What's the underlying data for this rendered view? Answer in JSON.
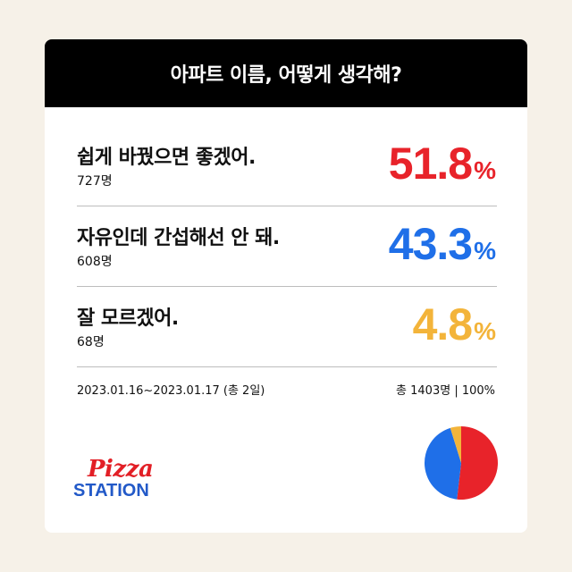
{
  "header": {
    "title": "아파트 이름, 어떻게 생각해?"
  },
  "results": [
    {
      "label": "쉽게 바꿨으면 좋겠어.",
      "count": "727명",
      "percent": "51.8",
      "unit": "%",
      "color": "#e8232a"
    },
    {
      "label": "자유인데 간섭해선 안 돼.",
      "count": "608명",
      "percent": "43.3",
      "unit": "%",
      "color": "#1f6fe8"
    },
    {
      "label": "잘 모르겠어.",
      "count": "68명",
      "percent": "4.8",
      "unit": "%",
      "color": "#f3b43a"
    }
  ],
  "footer": {
    "period": "2023.01.16~2023.01.17 (총 2일)",
    "total": "총 1403명 | 100%"
  },
  "logo": {
    "top": "Pizza",
    "bottom": "STATION"
  },
  "chart_data": {
    "type": "pie",
    "categories": [
      "쉽게 바꿨으면 좋겠어.",
      "자유인데 간섭해선 안 돼.",
      "잘 모르겠어."
    ],
    "values": [
      51.8,
      43.3,
      4.8
    ],
    "colors": [
      "#e8232a",
      "#1f6fe8",
      "#f3b43a"
    ]
  }
}
